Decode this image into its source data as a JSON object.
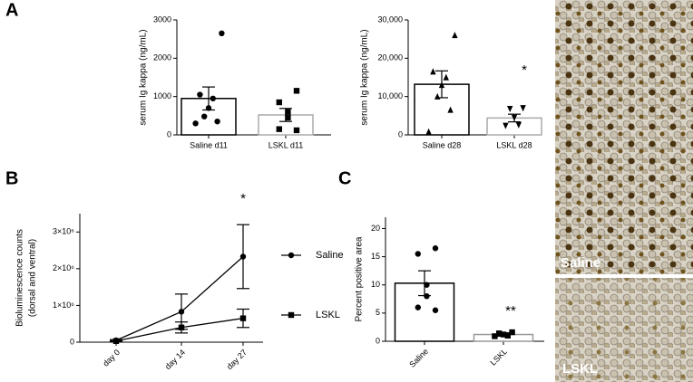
{
  "panels": [
    "A",
    "B",
    "C"
  ],
  "images": [
    {
      "label": "Saline"
    },
    {
      "label": "LSKL"
    }
  ],
  "chart_data": [
    {
      "type": "bar",
      "ylabel": "serum Ig kappa (ng/mL)",
      "categories": [
        "Saline d11",
        "LSKL d11"
      ],
      "values": [
        950,
        520
      ],
      "errors": [
        300,
        170
      ],
      "points": [
        [
          2650,
          1050,
          950,
          700,
          480,
          350,
          300
        ],
        [
          1150,
          850,
          600,
          450,
          150,
          120
        ]
      ],
      "markers": [
        "circle",
        "square"
      ],
      "colors": [
        "#000000",
        "#aaaaaa"
      ],
      "ylim": [
        0,
        3000
      ],
      "yticks": [
        0,
        1000,
        2000,
        3000
      ]
    },
    {
      "type": "bar",
      "ylabel": "serum Ig kappa (ng/mL)",
      "categories": [
        "Saline d28",
        "LSKL d28"
      ],
      "values": [
        13200,
        4400
      ],
      "errors": [
        3500,
        1000
      ],
      "points": [
        [
          26000,
          16500,
          15000,
          13000,
          10000,
          6500,
          800
        ],
        [
          7000,
          6800,
          4500,
          2600,
          2400
        ]
      ],
      "markers": [
        "triangle",
        "triangle-down"
      ],
      "colors": [
        "#000000",
        "#aaaaaa"
      ],
      "ylim": [
        0,
        30000
      ],
      "yticks": [
        0,
        {
          "value": 10000,
          "label": "10,000"
        },
        {
          "value": 20000,
          "label": "20,000"
        },
        {
          "value": 30000,
          "label": "30,000"
        }
      ],
      "annotation": "*"
    },
    {
      "type": "line",
      "ylabel": [
        "Bioluminescence counts",
        "(dorsal and ventral)"
      ],
      "categories": [
        "day 0",
        "day 14",
        "day 27"
      ],
      "series": [
        {
          "name": "Saline",
          "color": "#000000",
          "marker": "circle",
          "values": [
            50000,
            830000,
            2330000
          ],
          "errors": [
            20000,
            480000,
            870000
          ]
        },
        {
          "name": "LSKL",
          "color": "#000000",
          "marker": "square",
          "values": [
            30000,
            400000,
            650000
          ],
          "errors": [
            10000,
            150000,
            250000
          ]
        }
      ],
      "ylim": [
        0,
        3500000
      ],
      "yticks": [
        0,
        {
          "value": 1000000,
          "label": "1×10⁶"
        },
        {
          "value": 2000000,
          "label": "2×10⁶"
        },
        {
          "value": 3000000,
          "label": "3×10⁶"
        }
      ],
      "annotation": "*"
    },
    {
      "type": "bar",
      "ylabel": "Percent positive area",
      "categories": [
        "Saline",
        "LSKL"
      ],
      "values": [
        10.3,
        1.2
      ],
      "errors": [
        2.2,
        0.3
      ],
      "points": [
        [
          16.5,
          15.5,
          10,
          8,
          6,
          5.5
        ],
        [
          1.6,
          1.4,
          1.2,
          1.0,
          0.9
        ]
      ],
      "markers": [
        "circle",
        "square"
      ],
      "colors": [
        "#000000",
        "#999999"
      ],
      "ylim": [
        0,
        22
      ],
      "yticks": [
        0,
        5,
        10,
        15,
        20
      ],
      "annotation": "**"
    }
  ]
}
